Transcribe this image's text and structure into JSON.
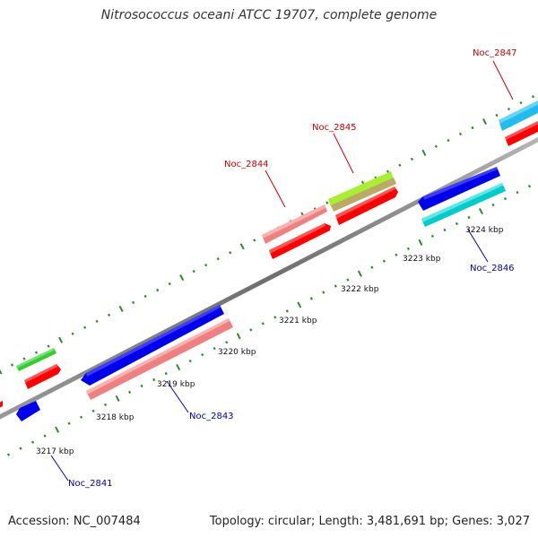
{
  "title": "Nitrosococcus oceani ATCC 19707, complete genome",
  "footer": {
    "accession": "Accession: NC_007484",
    "topology": "Topology: circular; Length: 3,481,691 bp; Genes: 3,027"
  },
  "kbp_labels": [
    "3217 kbp",
    "3218 kbp",
    "3219 kbp",
    "3220 kbp",
    "3221 kbp",
    "3222 kbp",
    "3223 kbp",
    "3224 kbp"
  ],
  "gene_labels": [
    "Noc_2847",
    "Noc_2845",
    "Noc_2844",
    "Noc_2846",
    "Noc_2843",
    "Noc_2841"
  ],
  "colors": {
    "backbone": "#8a8a8a",
    "tick": "#2e8b2e",
    "label_forward": "#cc0000",
    "label_reverse": "#0000aa",
    "red": "#ff0000",
    "pink": "#f08080",
    "blue": "#0000ee",
    "cyan": "#00cccc",
    "skyblue": "#22bbee",
    "green": "#33cc33",
    "lime": "#aaee33",
    "tan": "#bbaa66"
  }
}
